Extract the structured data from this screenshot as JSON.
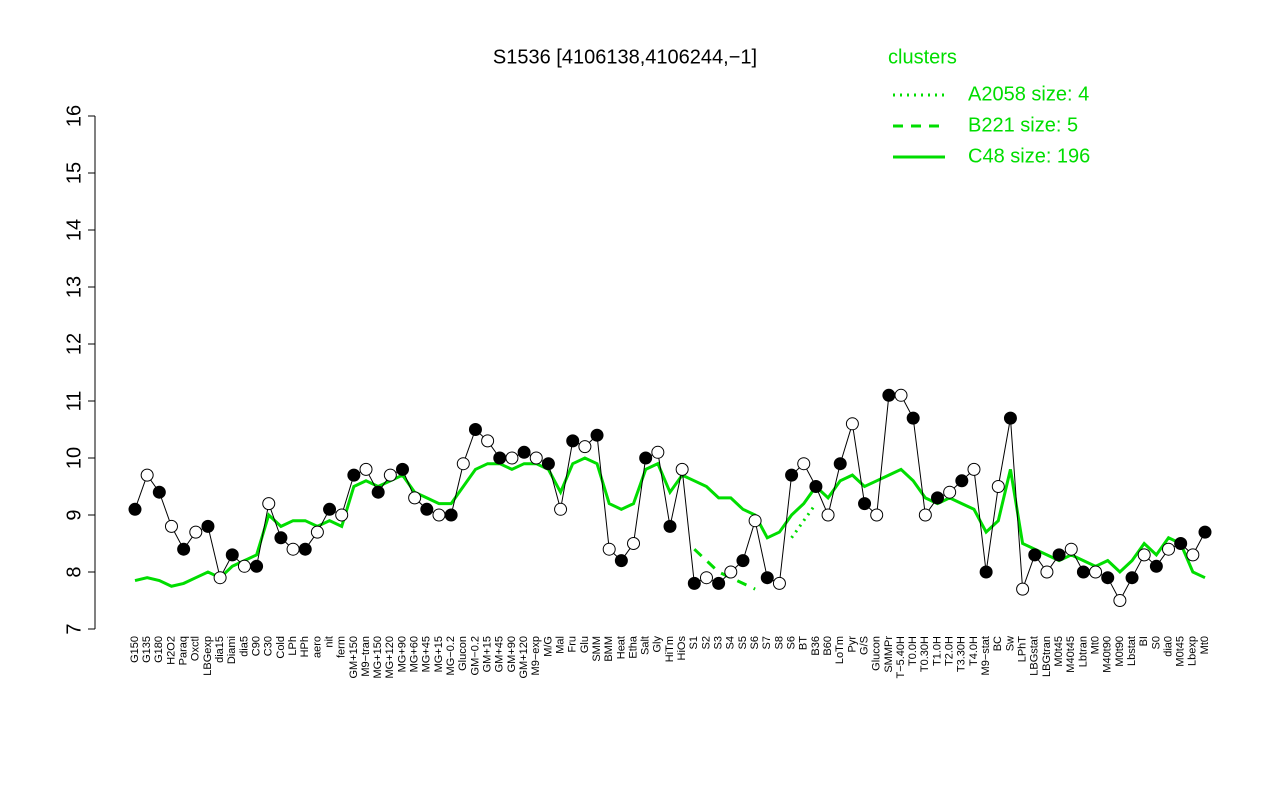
{
  "chart_data": {
    "type": "line",
    "title": "S1536 [4106138,4106244,−1]",
    "categories": [
      "G150",
      "G135",
      "G180",
      "H2O2",
      "Paraq",
      "Oxctl",
      "LBGexp",
      "dia15",
      "Diami",
      "dia5",
      "C90",
      "C30",
      "Cold",
      "LPh",
      "HPh",
      "aero",
      "nit",
      "ferm",
      "GM+150",
      "M9−tran",
      "MG+150",
      "MG+120",
      "MG+90",
      "MG+60",
      "MG+45",
      "MG+15",
      "MG−0.2",
      "Glucon",
      "GM−0.2",
      "GM+15",
      "GM+45",
      "GM+90",
      "GM+120",
      "M9−exp",
      "M/G",
      "Mal",
      "Fru",
      "Glu",
      "SMM",
      "BMM",
      "Heat",
      "Etha",
      "Salt",
      "Gly",
      "HiTm",
      "HiOs",
      "S1",
      "S2",
      "S3",
      "S4",
      "S5",
      "S6",
      "S7",
      "S8",
      "S6",
      "BT",
      "B36",
      "B60",
      "LoTm",
      "Pyr",
      "G/S",
      "Glucon",
      "SMMPr",
      "T−5.40H",
      "T0.0H",
      "T0.30H",
      "T1.0H",
      "T2.0H",
      "T3.30H",
      "T4.0H",
      "M9−stat",
      "BC",
      "Sw",
      "LPhT",
      "LBGstat",
      "LBGtran",
      "M0t45",
      "M40t45",
      "Lbtran",
      "Mt0",
      "M40t90",
      "M0t90",
      "Lbstat",
      "BI",
      "S0",
      "dia0",
      "M0t45",
      "Lbexp",
      "Mt0"
    ],
    "values": [
      9.1,
      9.7,
      9.4,
      8.8,
      8.4,
      8.7,
      8.8,
      7.9,
      8.3,
      8.1,
      8.1,
      9.2,
      8.6,
      8.4,
      8.4,
      8.7,
      9.1,
      9.0,
      9.7,
      9.8,
      9.4,
      9.7,
      9.8,
      9.3,
      9.1,
      9.0,
      9.0,
      9.9,
      10.5,
      10.3,
      10.0,
      10.0,
      10.1,
      10.0,
      9.9,
      9.1,
      10.3,
      10.2,
      10.4,
      8.4,
      8.2,
      8.5,
      10.0,
      10.1,
      8.8,
      9.8,
      7.8,
      7.9,
      7.8,
      8.0,
      8.2,
      8.9,
      7.9,
      7.8,
      9.7,
      9.9,
      9.5,
      9.0,
      9.9,
      10.6,
      9.2,
      9.0,
      11.1,
      11.1,
      10.7,
      9.0,
      9.3,
      9.4,
      9.6,
      9.8,
      8.0,
      9.5,
      10.7,
      7.7,
      8.3,
      8.0,
      8.3,
      8.4,
      8.0,
      8.0,
      7.9,
      7.5,
      7.9,
      8.3,
      8.1,
      8.4,
      8.5,
      8.3,
      8.7
    ],
    "color": "#000000",
    "series": [
      {
        "name": "A2058 size: 4",
        "color": "#00dd00",
        "line_style": "dotted",
        "values": [
          null,
          null,
          null,
          null,
          null,
          null,
          null,
          null,
          null,
          null,
          null,
          null,
          null,
          null,
          null,
          null,
          null,
          null,
          null,
          null,
          null,
          null,
          null,
          null,
          null,
          null,
          null,
          null,
          null,
          null,
          null,
          null,
          null,
          null,
          null,
          null,
          null,
          null,
          null,
          null,
          null,
          null,
          null,
          null,
          null,
          null,
          null,
          null,
          null,
          null,
          null,
          null,
          null,
          null,
          8.6,
          8.9,
          9.2,
          null,
          null,
          null,
          null,
          null,
          null,
          null,
          null,
          null,
          null,
          null,
          null,
          null,
          null,
          null,
          null,
          null,
          null,
          null,
          null,
          null,
          null,
          null,
          null,
          null,
          null,
          null,
          null,
          null,
          null,
          null,
          null
        ]
      },
      {
        "name": "B221 size: 5",
        "color": "#00dd00",
        "line_style": "dashed",
        "values": [
          null,
          null,
          null,
          null,
          null,
          null,
          null,
          null,
          null,
          null,
          null,
          null,
          null,
          null,
          null,
          null,
          null,
          null,
          null,
          null,
          null,
          null,
          null,
          null,
          null,
          null,
          null,
          null,
          null,
          null,
          null,
          null,
          null,
          null,
          null,
          null,
          null,
          null,
          null,
          null,
          null,
          null,
          null,
          null,
          null,
          null,
          8.4,
          8.2,
          8.0,
          7.9,
          7.8,
          7.7,
          null,
          null,
          null,
          null,
          null,
          null,
          null,
          null,
          null,
          null,
          null,
          null,
          null,
          null,
          null,
          null,
          null,
          null,
          null,
          null,
          null,
          null,
          null,
          null,
          null,
          null,
          null,
          null,
          null,
          null,
          null,
          null,
          null,
          null,
          null,
          null,
          null
        ]
      },
      {
        "name": "C48 size: 196",
        "color": "#00dd00",
        "line_style": "solid",
        "values": [
          7.85,
          7.9,
          7.85,
          7.75,
          7.8,
          7.9,
          8.0,
          7.9,
          8.1,
          8.2,
          8.3,
          9.0,
          8.8,
          8.9,
          8.9,
          8.8,
          8.9,
          8.8,
          9.5,
          9.6,
          9.5,
          9.6,
          9.7,
          9.4,
          9.3,
          9.2,
          9.2,
          9.5,
          9.8,
          9.9,
          9.9,
          9.8,
          9.9,
          9.9,
          9.8,
          9.4,
          9.9,
          10.0,
          9.9,
          9.2,
          9.1,
          9.2,
          9.8,
          9.9,
          9.4,
          9.7,
          9.6,
          9.5,
          9.3,
          9.3,
          9.1,
          9.0,
          8.6,
          8.7,
          9.0,
          9.2,
          9.5,
          9.3,
          9.6,
          9.7,
          9.5,
          9.6,
          9.7,
          9.8,
          9.6,
          9.3,
          9.2,
          9.3,
          9.2,
          9.1,
          8.7,
          8.9,
          9.8,
          8.5,
          8.4,
          8.3,
          8.2,
          8.3,
          8.2,
          8.1,
          8.2,
          8.0,
          8.2,
          8.5,
          8.3,
          8.6,
          8.5,
          8.0,
          7.9
        ]
      }
    ],
    "legend_title": "clusters",
    "ylim": [
      7,
      16
    ],
    "yticks": [
      7,
      8,
      9,
      10,
      11,
      12,
      13,
      14,
      15,
      16
    ]
  }
}
